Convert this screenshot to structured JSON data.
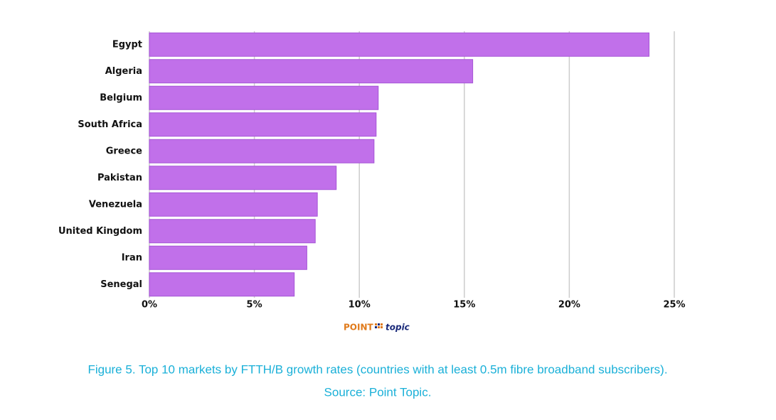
{
  "chart_data": {
    "type": "bar",
    "orientation": "horizontal",
    "categories": [
      "Egypt",
      "Algeria",
      "Belgium",
      "South Africa",
      "Greece",
      "Pakistan",
      "Venezuela",
      "United Kingdom",
      "Iran",
      "Senegal"
    ],
    "values": [
      23.8,
      15.4,
      10.9,
      10.8,
      10.7,
      8.9,
      8.0,
      7.9,
      7.5,
      6.9
    ],
    "color": "#c170ea",
    "xlim": [
      0,
      25
    ],
    "xticks": [
      {
        "value": 0,
        "label": "0%"
      },
      {
        "value": 5,
        "label": "5%"
      },
      {
        "value": 10,
        "label": "10%"
      },
      {
        "value": 15,
        "label": "15%"
      },
      {
        "value": 20,
        "label": "20%"
      },
      {
        "value": 25,
        "label": "25%"
      }
    ],
    "grid": true,
    "logo": {
      "first": "POINT",
      "second": "topic"
    },
    "caption": "Figure 5. Top 10 markets by FTTH/B growth rates (countries with at least 0.5m fibre broadband subscribers).",
    "source": "Source: Point Topic."
  }
}
